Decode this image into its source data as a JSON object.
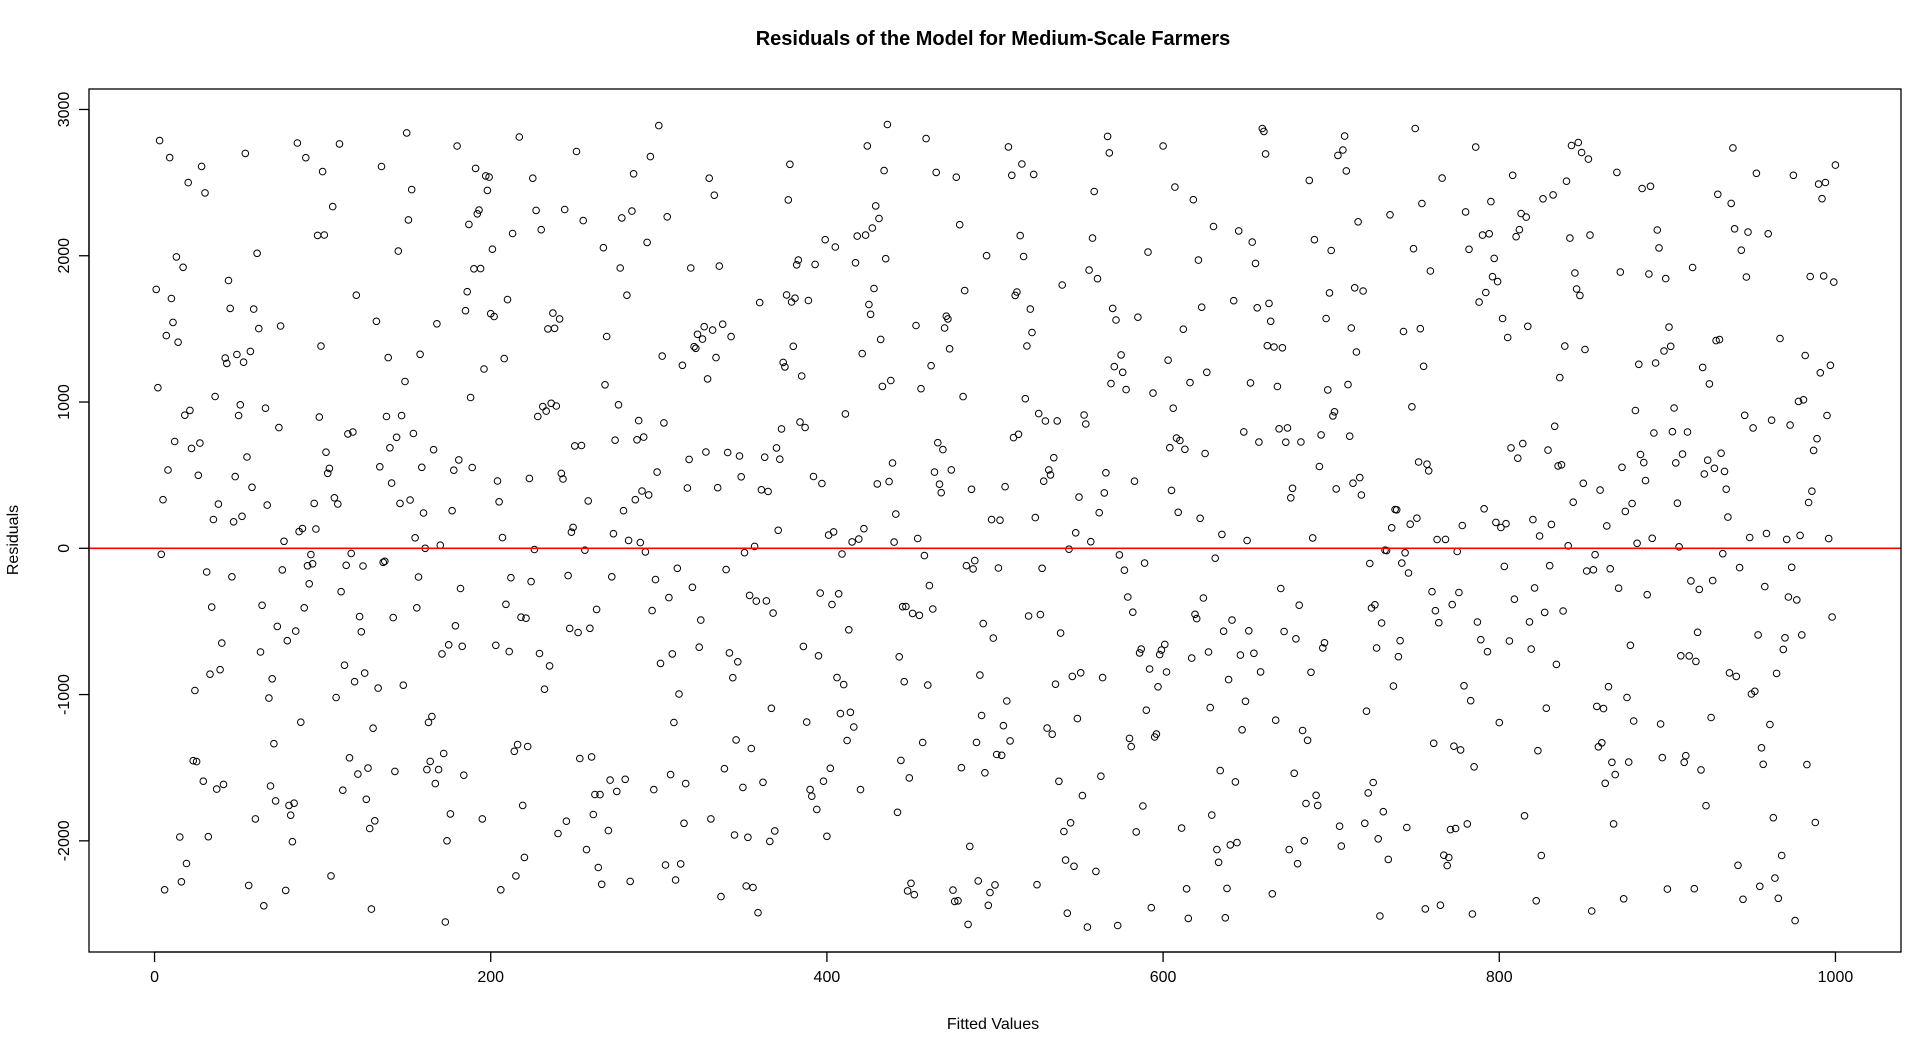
{
  "chart_data": {
    "type": "scatter",
    "title": "Residuals of the Model for Medium-Scale Farmers",
    "xlabel": "Fitted Values",
    "ylabel": "Residuals",
    "xlim": [
      -39,
      1039
    ],
    "ylim": [
      -2760,
      3140
    ],
    "x_ticks": [
      0,
      200,
      400,
      600,
      800,
      1000
    ],
    "x_tick_labels": [
      "0",
      "200",
      "400",
      "600",
      "800",
      "1000"
    ],
    "y_ticks": [
      -2000,
      -1000,
      0,
      1000,
      2000,
      3000
    ],
    "y_tick_labels": [
      "-2000",
      "-1000",
      "0",
      "1000",
      "2000",
      "3000"
    ],
    "reference_line": {
      "y": 0,
      "color": "#ff0000"
    },
    "point_color": "#000000",
    "n_points": 1000,
    "x_range": [
      1,
      1000
    ],
    "y_range": [
      -2600,
      2900
    ],
    "series": [
      {
        "name": "residuals",
        "x": [
          1,
          16,
          30,
          45,
          60,
          75,
          90,
          105,
          120,
          135,
          150,
          165,
          180,
          195,
          210,
          225,
          240,
          255,
          270,
          285,
          300,
          315,
          330,
          345,
          360,
          375,
          390,
          405,
          420,
          435,
          450,
          465,
          480,
          495,
          510,
          525,
          540,
          555,
          570,
          585,
          600,
          615,
          630,
          645,
          660,
          675,
          690,
          705,
          720,
          735,
          750,
          765,
          780,
          795,
          810,
          825,
          840,
          855,
          870,
          885,
          900,
          915,
          930,
          945,
          960,
          975,
          990,
          1000
        ],
        "y": [
          1770,
          -2280,
          2430,
          1640,
          -1850,
          1520,
          2670,
          -2240,
          1730,
          2610,
          2840,
          -1150,
          2750,
          -1850,
          1700,
          2530,
          -1950,
          2240,
          -1930,
          2560,
          2890,
          -1880,
          2530,
          -1960,
          1680,
          1240,
          -1650,
          2060,
          -1650,
          1980,
          -2290,
          2570,
          -1500,
          2000,
          2550,
          -2300,
          1800,
          -2590,
          1640,
          1580,
          2750,
          -2530,
          2200,
          2170,
          2850,
          -2060,
          2110,
          -1900,
          -1880,
          2280,
          2870,
          -2440,
          2300,
          2370,
          2130,
          -2100,
          2510,
          -2480,
          2570,
          2460,
          -2330,
          1920,
          2420,
          -2400,
          2150,
          2550,
          2490,
          2620
        ]
      }
    ]
  }
}
